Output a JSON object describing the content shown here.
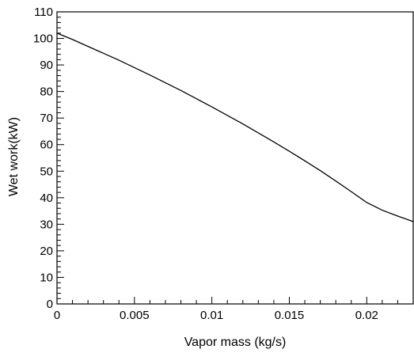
{
  "chart_data": {
    "type": "line",
    "title": "",
    "xlabel": "Vapor mass (kg/s)",
    "ylabel": "Wet work(kW)",
    "xlim": [
      0,
      0.023
    ],
    "ylim": [
      0,
      110
    ],
    "x_ticks": [
      "0",
      "0.005",
      "0.01",
      "0.015",
      "0.02"
    ],
    "y_ticks": [
      "0",
      "10",
      "20",
      "30",
      "40",
      "50",
      "60",
      "70",
      "80",
      "90",
      "100",
      "110"
    ],
    "grid": false,
    "legend": "none",
    "series": [
      {
        "x": [
          0,
          0.001,
          0.002,
          0.003,
          0.004,
          0.005,
          0.006,
          0.007,
          0.008,
          0.009,
          0.01,
          0.011,
          0.012,
          0.013,
          0.014,
          0.015,
          0.016,
          0.017,
          0.018,
          0.019,
          0.02,
          0.021,
          0.022,
          0.023
        ],
        "y": [
          102,
          99.6,
          97.0,
          94.4,
          91.8,
          89.0,
          86.2,
          83.3,
          80.4,
          77.3,
          74.2,
          71.0,
          67.8,
          64.4,
          61.0,
          57.5,
          53.9,
          50.2,
          46.3,
          42.3,
          38.2,
          35.3,
          33.1,
          31.0
        ]
      }
    ],
    "line_color": "#000000"
  }
}
